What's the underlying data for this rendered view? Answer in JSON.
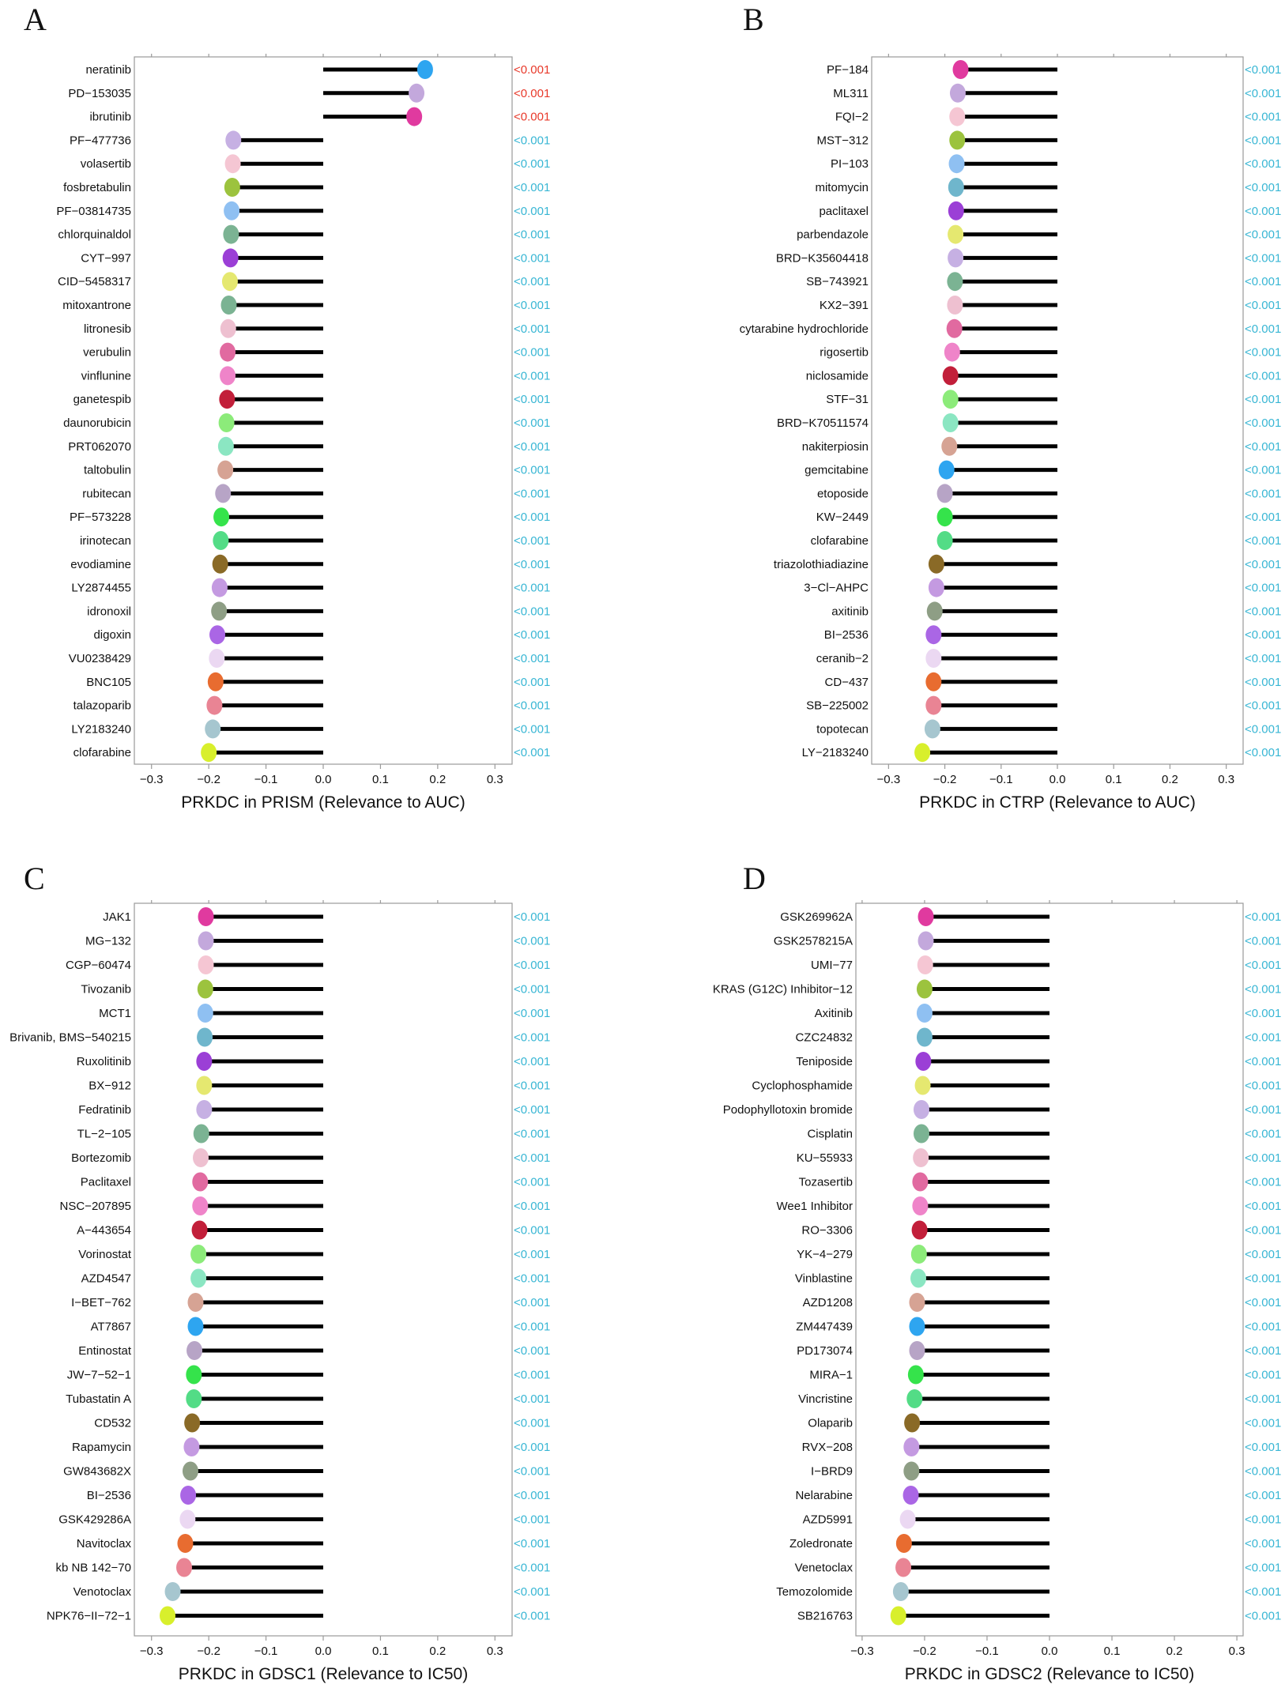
{
  "colors": {
    "significant_p": "#e8392a",
    "normal_p": "#38b6d4",
    "stick": "#000000",
    "frame": "#9a9a9a"
  },
  "dot_palette": [
    "#2ea5f0",
    "#c3a8dc",
    "#e03a9f",
    "#c6b0e3",
    "#f5c6d3",
    "#9cc33e",
    "#8fc0f2",
    "#6fb6cc",
    "#9b3fd6",
    "#e5e870",
    "#7bb393",
    "#eec0d0",
    "#e16aa0",
    "#ef84c9",
    "#c21f3a",
    "#8ceb7a",
    "#8be6c2",
    "#d6a394",
    "#b7a4c6",
    "#35e34b",
    "#53dc86",
    "#8a6a27",
    "#c49ae1",
    "#8e9e85",
    "#aa66e5",
    "#ebd8f2",
    "#e86c30",
    "#e98494",
    "#a6c6cf",
    "#d8ef2c"
  ],
  "chart_data": [
    {
      "letter": "A",
      "type": "lollipop",
      "title": "",
      "xlabel": "PRKDC in PRISM (Relevance to AUC)",
      "ylabel": "",
      "xlim": [
        -0.33,
        0.33
      ],
      "ticks": [
        -0.3,
        -0.2,
        -0.1,
        0.0,
        0.1,
        0.2,
        0.3
      ],
      "tick_labels": [
        "−0.3",
        "−0.2",
        "−0.1",
        "0.0",
        "0.1",
        "0.2",
        "0.3"
      ],
      "drugs": [
        "neratinib",
        "PD-153035",
        "ibrutinib",
        "PF-477736",
        "volasertib",
        "fosbretabulin",
        "PF-03814735",
        "chlorquinaldol",
        "CYT-997",
        "CID-5458317",
        "mitoxantrone",
        "litronesib",
        "verubulin",
        "vinflunine",
        "ganetespib",
        "daunorubicin",
        "PRT062070",
        "taltobulin",
        "rubitecan",
        "PF-573228",
        "irinotecan",
        "evodiamine",
        "LY2874455",
        "idronoxil",
        "digoxin",
        "VU0238429",
        "BNC105",
        "talazoparib",
        "LY2183240",
        "clofarabine"
      ],
      "display_names": [
        "neratinib",
        "PD−153035",
        "ibrutinib",
        "PF−477736",
        "volasertib",
        "fosbretabulin",
        "PF−03814735",
        "chlorquinaldol",
        "CYT−997",
        "CID−5458317",
        "mitoxantrone",
        "litronesib",
        "verubulin",
        "vinflunine",
        "ganetespib",
        "daunorubicin",
        "PRT062070",
        "taltobulin",
        "rubitecan",
        "PF−573228",
        "irinotecan",
        "evodiamine",
        "LY2874455",
        "idronoxil",
        "digoxin",
        "VU0238429",
        "BNC105",
        "talazoparib",
        "LY2183240",
        "clofarabine"
      ],
      "values": [
        0.178,
        0.163,
        0.159,
        -0.157,
        -0.158,
        -0.159,
        -0.16,
        -0.161,
        -0.162,
        -0.163,
        -0.165,
        -0.166,
        -0.167,
        -0.167,
        -0.168,
        -0.169,
        -0.17,
        -0.171,
        -0.175,
        -0.178,
        -0.179,
        -0.18,
        -0.181,
        -0.182,
        -0.185,
        -0.186,
        -0.188,
        -0.19,
        -0.193,
        -0.2
      ],
      "p_values": [
        "<0.001",
        "<0.001",
        "<0.001",
        "<0.001",
        "<0.001",
        "<0.001",
        "<0.001",
        "<0.001",
        "<0.001",
        "<0.001",
        "<0.001",
        "<0.001",
        "<0.001",
        "<0.001",
        "<0.001",
        "<0.001",
        "<0.001",
        "<0.001",
        "<0.001",
        "<0.001",
        "<0.001",
        "<0.001",
        "<0.001",
        "<0.001",
        "<0.001",
        "<0.001",
        "<0.001",
        "<0.001",
        "<0.001",
        "<0.001"
      ],
      "p_significant": [
        true,
        true,
        true,
        false,
        false,
        false,
        false,
        false,
        false,
        false,
        false,
        false,
        false,
        false,
        false,
        false,
        false,
        false,
        false,
        false,
        false,
        false,
        false,
        false,
        false,
        false,
        false,
        false,
        false,
        false
      ],
      "dot_color_index": [
        0,
        1,
        2,
        3,
        4,
        5,
        6,
        10,
        8,
        9,
        10,
        11,
        12,
        13,
        14,
        15,
        16,
        17,
        18,
        19,
        20,
        21,
        22,
        23,
        24,
        25,
        26,
        27,
        28,
        29
      ]
    },
    {
      "letter": "B",
      "type": "lollipop",
      "title": "",
      "xlabel": "PRKDC in CTRP (Relevance to AUC)",
      "ylabel": "",
      "xlim": [
        -0.33,
        0.33
      ],
      "ticks": [
        -0.3,
        -0.2,
        -0.1,
        0.0,
        0.1,
        0.2,
        0.3
      ],
      "tick_labels": [
        "−0.3",
        "−0.2",
        "−0.1",
        "0.0",
        "0.1",
        "0.2",
        "0.3"
      ],
      "drugs": [
        "PF-184",
        "ML311",
        "FQI-2",
        "MST-312",
        "PI-103",
        "mitomycin",
        "paclitaxel",
        "parbendazole",
        "BRD-K35604418",
        "SB-743921",
        "KX2-391",
        "cytarabine hydrochloride",
        "rigosertib",
        "niclosamide",
        "STF-31",
        "BRD-K70511574",
        "nakiterpiosin",
        "gemcitabine",
        "etoposide",
        "KW-2449",
        "clofarabine",
        "triazolothiadiazine",
        "3-Cl-AHPC",
        "axitinib",
        "BI-2536",
        "ceranib-2",
        "CD-437",
        "SB-225002",
        "topotecan",
        "LY-2183240"
      ],
      "display_names": [
        "PF−184",
        "ML311",
        "FQI−2",
        "MST−312",
        "PI−103",
        "mitomycin",
        "paclitaxel",
        "parbendazole",
        "BRD−K35604418",
        "SB−743921",
        "KX2−391",
        "cytarabine hydrochloride",
        "rigosertib",
        "niclosamide",
        "STF−31",
        "BRD−K70511574",
        "nakiterpiosin",
        "gemcitabine",
        "etoposide",
        "KW−2449",
        "clofarabine",
        "triazolothiadiazine",
        "3−Cl−AHPC",
        "axitinib",
        "BI−2536",
        "ceranib−2",
        "CD−437",
        "SB−225002",
        "topotecan",
        "LY−2183240"
      ],
      "values": [
        -0.172,
        -0.177,
        -0.178,
        -0.178,
        -0.179,
        -0.18,
        -0.18,
        -0.181,
        -0.181,
        -0.182,
        -0.182,
        -0.183,
        -0.187,
        -0.19,
        -0.19,
        -0.19,
        -0.192,
        -0.197,
        -0.2,
        -0.2,
        -0.2,
        -0.215,
        -0.215,
        -0.218,
        -0.22,
        -0.22,
        -0.22,
        -0.22,
        -0.222,
        -0.24
      ],
      "p_values": [
        "<0.001",
        "<0.001",
        "<0.001",
        "<0.001",
        "<0.001",
        "<0.001",
        "<0.001",
        "<0.001",
        "<0.001",
        "<0.001",
        "<0.001",
        "<0.001",
        "<0.001",
        "<0.001",
        "<0.001",
        "<0.001",
        "<0.001",
        "<0.001",
        "<0.001",
        "<0.001",
        "<0.001",
        "<0.001",
        "<0.001",
        "<0.001",
        "<0.001",
        "<0.001",
        "<0.001",
        "<0.001",
        "<0.001",
        "<0.001"
      ],
      "p_significant": [
        false,
        false,
        false,
        false,
        false,
        false,
        false,
        false,
        false,
        false,
        false,
        false,
        false,
        false,
        false,
        false,
        false,
        false,
        false,
        false,
        false,
        false,
        false,
        false,
        false,
        false,
        false,
        false,
        false,
        false
      ],
      "dot_color_index": [
        2,
        1,
        4,
        5,
        6,
        7,
        8,
        9,
        3,
        10,
        11,
        12,
        13,
        14,
        15,
        16,
        17,
        0,
        18,
        19,
        20,
        21,
        22,
        23,
        24,
        25,
        26,
        27,
        28,
        29
      ]
    },
    {
      "letter": "C",
      "type": "lollipop",
      "title": "",
      "xlabel": "PRKDC in GDSC1 (Relevance to IC50)",
      "ylabel": "",
      "xlim": [
        -0.33,
        0.33
      ],
      "ticks": [
        -0.3,
        -0.2,
        -0.1,
        0.0,
        0.1,
        0.2,
        0.3
      ],
      "tick_labels": [
        "−0.3",
        "−0.2",
        "−0.1",
        "0.0",
        "0.1",
        "0.2",
        "0.3"
      ],
      "drugs": [
        "JAK1",
        "MG-132",
        "CGP-60474",
        "Tivozanib",
        "MCT1",
        "Brivanib, BMS-540215",
        "Ruxolitinib",
        "BX-912",
        "Fedratinib",
        "TL-2-105",
        "Bortezomib",
        "Paclitaxel",
        "NSC-207895",
        "A-443654",
        "Vorinostat",
        "AZD4547",
        "I-BET-762",
        "AT7867",
        "Entinostat",
        "JW-7-52-1",
        "Tubastatin A",
        "CD532",
        "Rapamycin",
        "GW843682X",
        "BI-2536",
        "GSK429286A",
        "Navitoclax",
        "kb NB 142-70",
        "Venotoclax",
        "NPK76-II-72-1"
      ],
      "display_names": [
        "JAK1",
        "MG−132",
        "CGP−60474",
        "Tivozanib",
        "MCT1",
        "Brivanib, BMS−540215",
        "Ruxolitinib",
        "BX−912",
        "Fedratinib",
        "TL−2−105",
        "Bortezomib",
        "Paclitaxel",
        "NSC−207895",
        "A−443654",
        "Vorinostat",
        "AZD4547",
        "I−BET−762",
        "AT7867",
        "Entinostat",
        "JW−7−52−1",
        "Tubastatin A",
        "CD532",
        "Rapamycin",
        "GW843682X",
        "BI−2536",
        "GSK429286A",
        "Navitoclax",
        "kb NB 142−70",
        "Venotoclax",
        "NPK76−II−72−1"
      ],
      "values": [
        -0.205,
        -0.205,
        -0.205,
        -0.206,
        -0.206,
        -0.207,
        -0.208,
        -0.208,
        -0.208,
        -0.213,
        -0.214,
        -0.215,
        -0.215,
        -0.216,
        -0.218,
        -0.218,
        -0.223,
        -0.223,
        -0.225,
        -0.226,
        -0.226,
        -0.229,
        -0.23,
        -0.232,
        -0.236,
        -0.237,
        -0.241,
        -0.243,
        -0.263,
        -0.272
      ],
      "p_values": [
        "<0.001",
        "<0.001",
        "<0.001",
        "<0.001",
        "<0.001",
        "<0.001",
        "<0.001",
        "<0.001",
        "<0.001",
        "<0.001",
        "<0.001",
        "<0.001",
        "<0.001",
        "<0.001",
        "<0.001",
        "<0.001",
        "<0.001",
        "<0.001",
        "<0.001",
        "<0.001",
        "<0.001",
        "<0.001",
        "<0.001",
        "<0.001",
        "<0.001",
        "<0.001",
        "<0.001",
        "<0.001",
        "<0.001",
        "<0.001"
      ],
      "p_significant": [
        false,
        false,
        false,
        false,
        false,
        false,
        false,
        false,
        false,
        false,
        false,
        false,
        false,
        false,
        false,
        false,
        false,
        false,
        false,
        false,
        false,
        false,
        false,
        false,
        false,
        false,
        false,
        false,
        false,
        false
      ],
      "dot_color_index": [
        2,
        1,
        4,
        5,
        6,
        7,
        8,
        9,
        3,
        10,
        11,
        12,
        13,
        14,
        15,
        16,
        17,
        0,
        18,
        19,
        20,
        21,
        22,
        23,
        24,
        25,
        26,
        27,
        28,
        29
      ]
    },
    {
      "letter": "D",
      "type": "lollipop",
      "title": "",
      "xlabel": "PRKDC in GDSC2 (Relevance to IC50)",
      "ylabel": "",
      "xlim": [
        -0.31,
        0.31
      ],
      "ticks": [
        -0.3,
        -0.2,
        -0.1,
        0.0,
        0.1,
        0.2,
        0.3
      ],
      "tick_labels": [
        "−0.3",
        "−0.2",
        "−0.1",
        "0.0",
        "0.1",
        "0.2",
        "0.3"
      ],
      "drugs": [
        "GSK269962A",
        "GSK2578215A",
        "UMI-77",
        "KRAS (G12C) Inhibitor-12",
        "Axitinib",
        "CZC24832",
        "Teniposide",
        "Cyclophosphamide",
        "Podophyllotoxin bromide",
        "Cisplatin",
        "KU-55933",
        "Tozasertib",
        "Wee1 Inhibitor",
        "RO-3306",
        "YK-4-279",
        "Vinblastine",
        "AZD1208",
        "ZM447439",
        "PD173074",
        "MIRA-1",
        "Vincristine",
        "Olaparib",
        "RVX-208",
        "I-BRD9",
        "Nelarabine",
        "AZD5991",
        "Zoledronate",
        "Venetoclax",
        "Temozolomide",
        "SB216763"
      ],
      "display_names": [
        "GSK269962A",
        "GSK2578215A",
        "UMI−77",
        "KRAS (G12C) Inhibitor−12",
        "Axitinib",
        "CZC24832",
        "Teniposide",
        "Cyclophosphamide",
        "Podophyllotoxin bromide",
        "Cisplatin",
        "KU−55933",
        "Tozasertib",
        "Wee1 Inhibitor",
        "RO−3306",
        "YK−4−279",
        "Vinblastine",
        "AZD1208",
        "ZM447439",
        "PD173074",
        "MIRA−1",
        "Vincristine",
        "Olaparib",
        "RVX−208",
        "I−BRD9",
        "Nelarabine",
        "AZD5991",
        "Zoledronate",
        "Venetoclax",
        "Temozolomide",
        "SB216763"
      ],
      "values": [
        -0.198,
        -0.198,
        -0.199,
        -0.2,
        -0.2,
        -0.2,
        -0.202,
        -0.203,
        -0.205,
        -0.205,
        -0.206,
        -0.207,
        -0.207,
        -0.208,
        -0.209,
        -0.21,
        -0.212,
        -0.212,
        -0.212,
        -0.214,
        -0.216,
        -0.22,
        -0.221,
        -0.221,
        -0.222,
        -0.227,
        -0.233,
        -0.234,
        -0.238,
        -0.242
      ],
      "p_values": [
        "<0.001",
        "<0.001",
        "<0.001",
        "<0.001",
        "<0.001",
        "<0.001",
        "<0.001",
        "<0.001",
        "<0.001",
        "<0.001",
        "<0.001",
        "<0.001",
        "<0.001",
        "<0.001",
        "<0.001",
        "<0.001",
        "<0.001",
        "<0.001",
        "<0.001",
        "<0.001",
        "<0.001",
        "<0.001",
        "<0.001",
        "<0.001",
        "<0.001",
        "<0.001",
        "<0.001",
        "<0.001",
        "<0.001",
        "<0.001"
      ],
      "p_significant": [
        false,
        false,
        false,
        false,
        false,
        false,
        false,
        false,
        false,
        false,
        false,
        false,
        false,
        false,
        false,
        false,
        false,
        false,
        false,
        false,
        false,
        false,
        false,
        false,
        false,
        false,
        false,
        false,
        false,
        false
      ],
      "dot_color_index": [
        2,
        1,
        4,
        5,
        6,
        7,
        8,
        9,
        3,
        10,
        11,
        12,
        13,
        14,
        15,
        16,
        17,
        0,
        18,
        19,
        20,
        21,
        22,
        23,
        24,
        25,
        26,
        27,
        28,
        29
      ]
    }
  ]
}
